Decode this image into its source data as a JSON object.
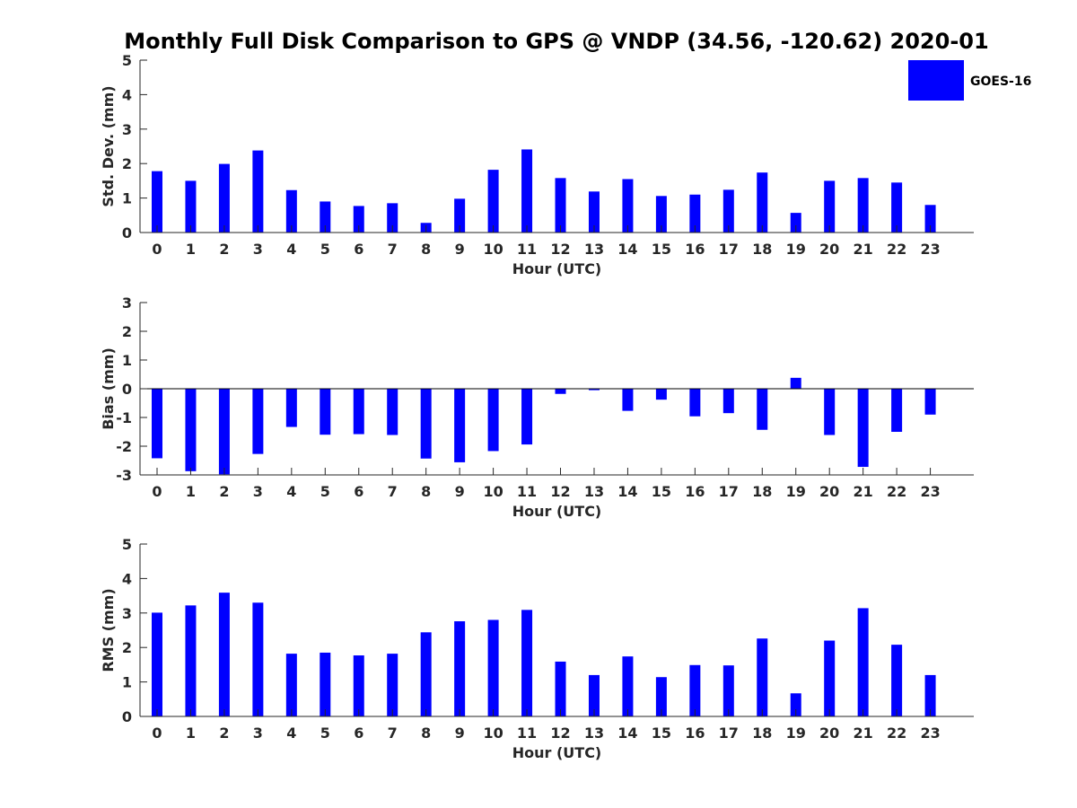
{
  "chart_data": {
    "title": "Monthly Full Disk Comparison to GPS @ VNDP (34.56, -120.62) 2020-01",
    "bar_color": "#0000ff",
    "legend": {
      "label": "GOES-16",
      "placement": "top-right"
    },
    "subplots": [
      {
        "type": "bar",
        "series_name": "GOES-16",
        "categories": [
          "0",
          "1",
          "2",
          "3",
          "4",
          "5",
          "6",
          "7",
          "8",
          "9",
          "10",
          "11",
          "12",
          "13",
          "14",
          "15",
          "16",
          "17",
          "18",
          "19",
          "20",
          "21",
          "22",
          "23"
        ],
        "values": [
          1.78,
          1.5,
          1.99,
          2.38,
          1.23,
          0.9,
          0.77,
          0.85,
          0.28,
          0.98,
          1.82,
          2.41,
          1.58,
          1.19,
          1.55,
          1.06,
          1.1,
          1.24,
          1.74,
          0.57,
          1.5,
          1.58,
          1.45,
          0.8
        ],
        "xlabel": "Hour (UTC)",
        "ylabel": "Std. Dev. (mm)",
        "ylim": [
          0,
          5
        ],
        "yticks": [
          "0",
          "1",
          "2",
          "3",
          "4",
          "5"
        ]
      },
      {
        "type": "bar",
        "series_name": "GOES-16",
        "categories": [
          "0",
          "1",
          "2",
          "3",
          "4",
          "5",
          "6",
          "7",
          "8",
          "9",
          "10",
          "11",
          "12",
          "13",
          "14",
          "15",
          "16",
          "17",
          "18",
          "19",
          "20",
          "21",
          "22",
          "23"
        ],
        "values": [
          -2.42,
          -2.87,
          -2.98,
          -2.27,
          -1.33,
          -1.6,
          -1.58,
          -1.61,
          -2.43,
          -2.56,
          -2.17,
          -1.94,
          -0.18,
          -0.05,
          -0.77,
          -0.38,
          -0.96,
          -0.85,
          -1.43,
          0.38,
          -1.61,
          -2.72,
          -1.5,
          -0.9
        ],
        "xlabel": "Hour (UTC)",
        "ylabel": "Bias (mm)",
        "ylim": [
          -3,
          3
        ],
        "yticks": [
          "-3",
          "-2",
          "-1",
          "0",
          "1",
          "2",
          "3"
        ]
      },
      {
        "type": "bar",
        "series_name": "GOES-16",
        "categories": [
          "0",
          "1",
          "2",
          "3",
          "4",
          "5",
          "6",
          "7",
          "8",
          "9",
          "10",
          "11",
          "12",
          "13",
          "14",
          "15",
          "16",
          "17",
          "18",
          "19",
          "20",
          "21",
          "22",
          "23"
        ],
        "values": [
          3.01,
          3.22,
          3.59,
          3.3,
          1.82,
          1.85,
          1.77,
          1.82,
          2.44,
          2.76,
          2.8,
          3.09,
          1.59,
          1.2,
          1.74,
          1.14,
          1.49,
          1.48,
          2.26,
          0.67,
          2.2,
          3.14,
          2.08,
          1.2
        ],
        "xlabel": "Hour (UTC)",
        "ylabel": "RMS (mm)",
        "ylim": [
          0,
          5
        ],
        "yticks": [
          "0",
          "1",
          "2",
          "3",
          "4",
          "5"
        ]
      }
    ]
  }
}
